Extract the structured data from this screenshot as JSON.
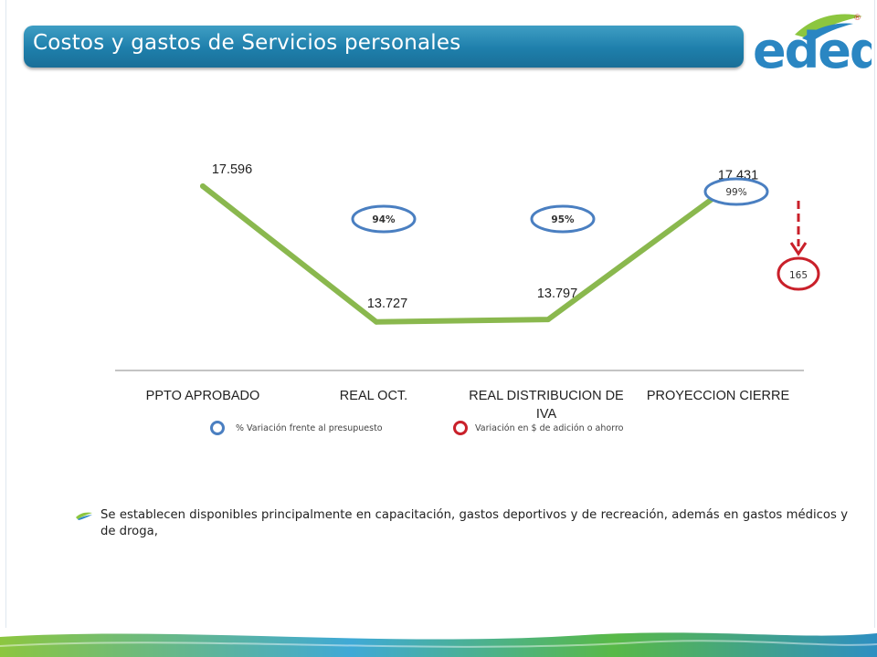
{
  "header": {
    "title": "Costos y gastos de Servicios personales",
    "logo_text": "edeq",
    "logo_mark": "®"
  },
  "colors": {
    "title_bar": "#1e7fab",
    "line": "#8ab84e",
    "blue_circle": "#4a7fc1",
    "red_circle": "#c9202a",
    "arrow": "#c9202a",
    "logo_blue": "#2a86c2",
    "logo_green": "#8cc63f"
  },
  "chart_data": {
    "type": "line",
    "categories": [
      "PPTO APROBADO",
      "REAL OCT.",
      "REAL DISTRIBUCION DE IVA",
      "PROYECCION CIERRE"
    ],
    "category_lines": [
      [
        "PPTO APROBADO"
      ],
      [
        "REAL OCT."
      ],
      [
        "REAL DISTRIBUCION DE",
        "IVA"
      ],
      [
        "PROYECCION CIERRE"
      ]
    ],
    "values": [
      17596,
      13727,
      13797,
      17431
    ],
    "data_labels": [
      "17.596",
      "13.727",
      "13.797",
      "17.431"
    ],
    "ylim": [
      12500,
      19000
    ],
    "grid": false,
    "pct_annotations": [
      {
        "index": 1,
        "label": "94%"
      },
      {
        "index": 2,
        "label": "95%"
      },
      {
        "index": 3,
        "label": "99%"
      }
    ],
    "savings_annotation": {
      "label": "165"
    },
    "legend": [
      {
        "marker": "blue-circle",
        "label": "% Variación frente al presupuesto"
      },
      {
        "marker": "red-circle",
        "label": "Variación en $ de adición o ahorro"
      }
    ]
  },
  "bullets": [
    {
      "text": "Se establecen disponibles principalmente en capacitación, gastos deportivos y de recreación, además en gastos médicos y de droga,"
    }
  ]
}
